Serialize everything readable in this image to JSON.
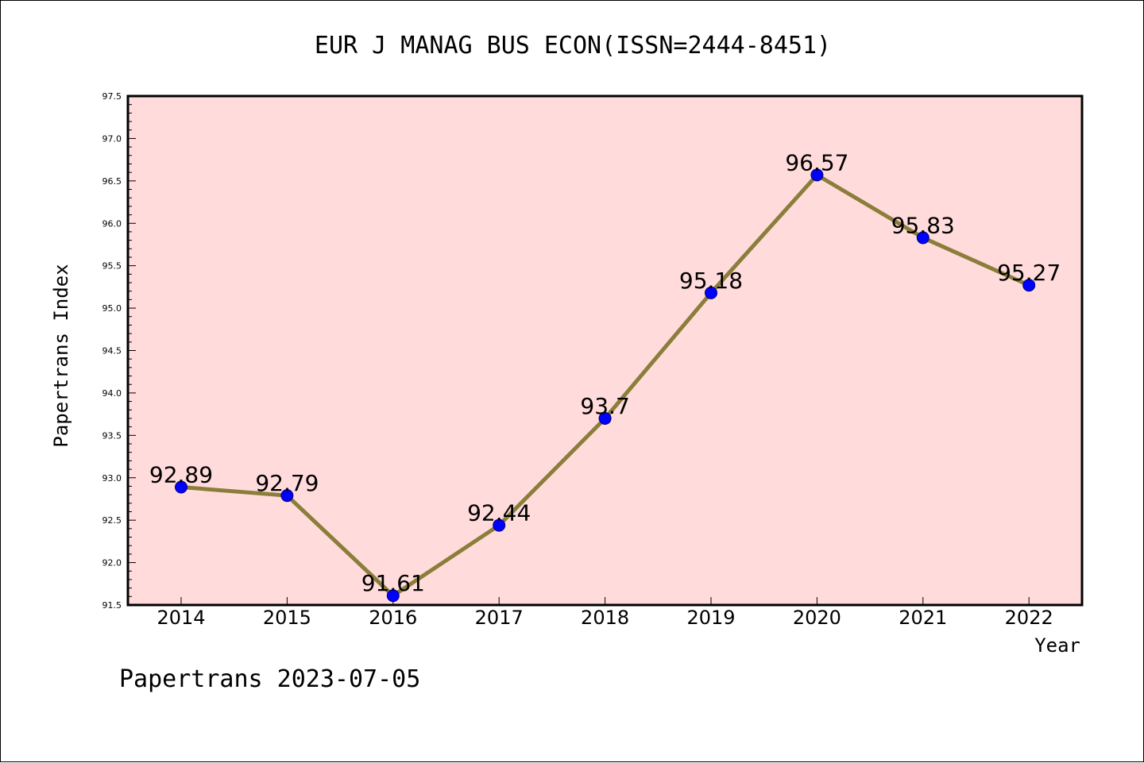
{
  "chart_data": {
    "type": "line",
    "title": "EUR J MANAG BUS ECON(ISSN=2444-8451)",
    "xlabel": "Year",
    "ylabel": "Papertrans Index",
    "x": [
      "2014",
      "2015",
      "2016",
      "2017",
      "2018",
      "2019",
      "2020",
      "2021",
      "2022"
    ],
    "series": [
      {
        "values": [
          92.89,
          92.79,
          91.61,
          92.44,
          93.7,
          95.18,
          96.57,
          95.83,
          95.27
        ],
        "data_labels": [
          "92.89",
          "92.79",
          "91.61",
          "92.44",
          "93.7",
          "95.18",
          "96.57",
          "95.83",
          "95.27"
        ],
        "line_color": "#8b7d3a",
        "marker_color": "#0000ff"
      }
    ],
    "ylim": [
      91.5,
      97.5
    ],
    "yticks": [
      "91.5",
      "92.0",
      "92.5",
      "93.0",
      "93.5",
      "94.0",
      "94.5",
      "95.0",
      "95.5",
      "96.0",
      "96.5",
      "97.0",
      "97.5"
    ],
    "plot_background": "#ffdcdb",
    "grid": false,
    "legend": "none"
  },
  "footer": {
    "text": "Papertrans 2023-07-05"
  }
}
